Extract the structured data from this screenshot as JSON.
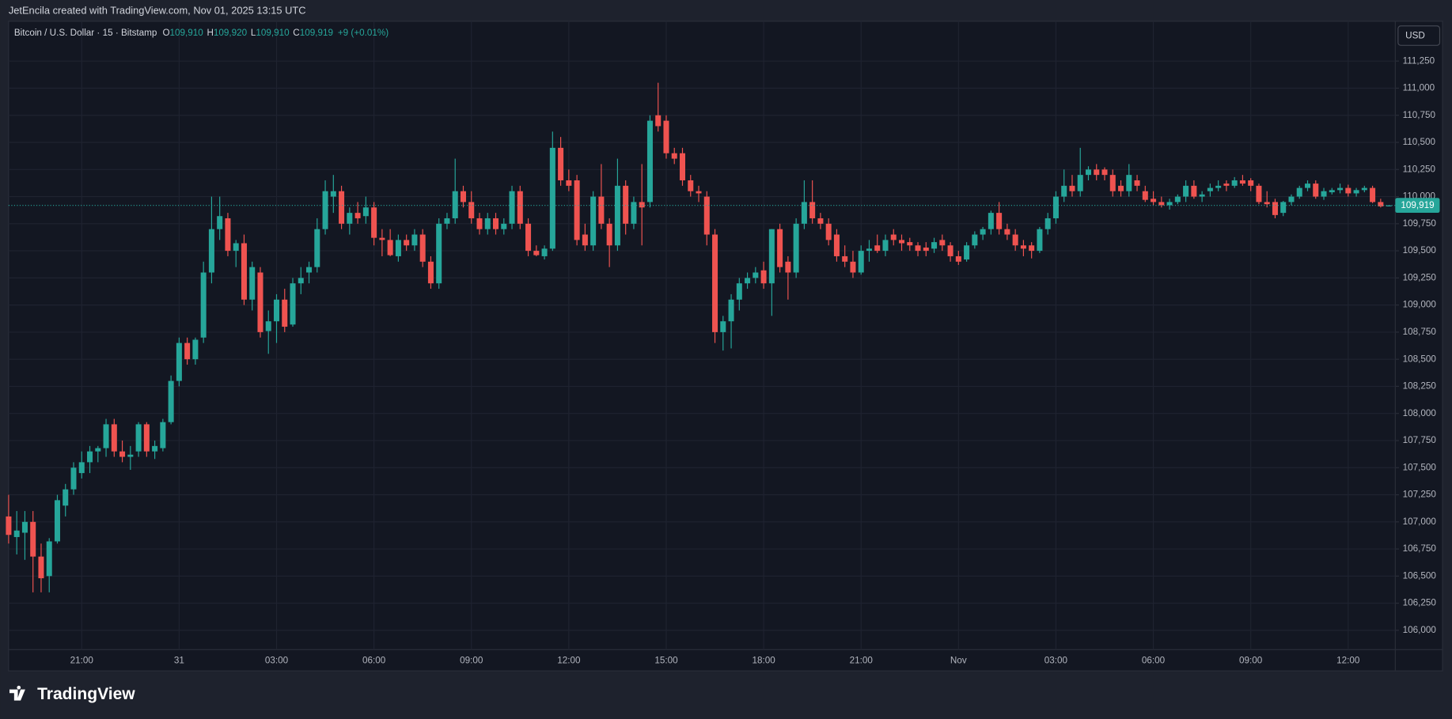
{
  "header": "JetEncila created with TradingView.com, Nov 01, 2025 13:15 UTC",
  "footer": {
    "brand": "TradingView"
  },
  "chart_data": {
    "type": "candlestick",
    "legend": {
      "symbol": "Bitcoin / U.S. Dollar · 15 · Bitstamp",
      "open_label": "O",
      "open": "109,910",
      "high_label": "H",
      "high": "109,920",
      "low_label": "L",
      "low": "109,910",
      "close_label": "C",
      "close": "109,919",
      "change": "+9 (+0.01%)"
    },
    "currency": "USD",
    "up_color": "#26a69a",
    "down_color": "#ef5350",
    "grid": true,
    "last_price": {
      "value": 109919,
      "label": "109,919"
    },
    "ylim": [
      105822,
      111617
    ],
    "yticks": [
      {
        "value": 106000,
        "label": "106,000"
      },
      {
        "value": 106250,
        "label": "106,250"
      },
      {
        "value": 106500,
        "label": "106,500"
      },
      {
        "value": 106750,
        "label": "106,750"
      },
      {
        "value": 107000,
        "label": "107,000"
      },
      {
        "value": 107250,
        "label": "107,250"
      },
      {
        "value": 107500,
        "label": "107,500"
      },
      {
        "value": 107750,
        "label": "107,750"
      },
      {
        "value": 108000,
        "label": "108,000"
      },
      {
        "value": 108250,
        "label": "108,250"
      },
      {
        "value": 108500,
        "label": "108,500"
      },
      {
        "value": 108750,
        "label": "108,750"
      },
      {
        "value": 109000,
        "label": "109,000"
      },
      {
        "value": 109250,
        "label": "109,250"
      },
      {
        "value": 109500,
        "label": "109,500"
      },
      {
        "value": 109750,
        "label": "109,750"
      },
      {
        "value": 110000,
        "label": "110,000"
      },
      {
        "value": 110250,
        "label": "110,250"
      },
      {
        "value": 110500,
        "label": "110,500"
      },
      {
        "value": 110750,
        "label": "110,750"
      },
      {
        "value": 111000,
        "label": "111,000"
      },
      {
        "value": 111250,
        "label": "111,250"
      }
    ],
    "categories": [
      null,
      null,
      null,
      null,
      null,
      null,
      null,
      null,
      null,
      "21:00",
      null,
      null,
      null,
      null,
      null,
      null,
      null,
      null,
      null,
      null,
      null,
      "31",
      null,
      null,
      null,
      null,
      null,
      null,
      null,
      null,
      null,
      null,
      null,
      "03:00",
      null,
      null,
      null,
      null,
      null,
      null,
      null,
      null,
      null,
      null,
      null,
      "06:00",
      null,
      null,
      null,
      null,
      null,
      null,
      null,
      null,
      null,
      null,
      null,
      "09:00",
      null,
      null,
      null,
      null,
      null,
      null,
      null,
      null,
      null,
      null,
      null,
      "12:00",
      null,
      null,
      null,
      null,
      null,
      null,
      null,
      null,
      null,
      null,
      null,
      "15:00",
      null,
      null,
      null,
      null,
      null,
      null,
      null,
      null,
      null,
      null,
      null,
      "18:00",
      null,
      null,
      null,
      null,
      null,
      null,
      null,
      null,
      null,
      null,
      null,
      "21:00",
      null,
      null,
      null,
      null,
      null,
      null,
      null,
      null,
      null,
      null,
      null,
      "Nov",
      null,
      null,
      null,
      null,
      null,
      null,
      null,
      null,
      null,
      null,
      null,
      "03:00",
      null,
      null,
      null,
      null,
      null,
      null,
      null,
      null,
      null,
      null,
      null,
      "06:00",
      null,
      null,
      null,
      null,
      null,
      null,
      null,
      null,
      null,
      null,
      null,
      "09:00",
      null,
      null,
      null,
      null,
      null,
      null,
      null,
      null,
      null,
      null,
      null,
      "12:00",
      null,
      null,
      null,
      null,
      null
    ],
    "ohlc": [
      [
        107050,
        107250,
        106800,
        106880
      ],
      [
        106860,
        107100,
        106700,
        106920
      ],
      [
        106900,
        107100,
        106650,
        107000
      ],
      [
        107000,
        107100,
        106350,
        106680
      ],
      [
        106680,
        106800,
        106350,
        106480
      ],
      [
        106500,
        106850,
        106350,
        106820
      ],
      [
        106820,
        107250,
        106800,
        107200
      ],
      [
        107150,
        107350,
        107050,
        107300
      ],
      [
        107300,
        107550,
        107250,
        107500
      ],
      [
        107450,
        107650,
        107400,
        107550
      ],
      [
        107550,
        107700,
        107450,
        107650
      ],
      [
        107650,
        107700,
        107550,
        107680
      ],
      [
        107680,
        107950,
        107600,
        107900
      ],
      [
        107900,
        107950,
        107600,
        107650
      ],
      [
        107650,
        107750,
        107550,
        107600
      ],
      [
        107600,
        107700,
        107480,
        107620
      ],
      [
        107650,
        107920,
        107600,
        107900
      ],
      [
        107900,
        107920,
        107600,
        107650
      ],
      [
        107650,
        107750,
        107580,
        107700
      ],
      [
        107680,
        107950,
        107650,
        107920
      ],
      [
        107920,
        108350,
        107900,
        108300
      ],
      [
        108300,
        108700,
        108250,
        108650
      ],
      [
        108650,
        108700,
        108450,
        108500
      ],
      [
        108500,
        108700,
        108450,
        108680
      ],
      [
        108700,
        109400,
        108650,
        109300
      ],
      [
        109300,
        110000,
        109200,
        109700
      ],
      [
        109700,
        110000,
        109600,
        109820
      ],
      [
        109800,
        109850,
        109450,
        109500
      ],
      [
        109500,
        109600,
        109350,
        109570
      ],
      [
        109570,
        109650,
        109000,
        109050
      ],
      [
        109050,
        109400,
        108950,
        109350
      ],
      [
        109300,
        109350,
        108700,
        108750
      ],
      [
        108760,
        108950,
        108550,
        108850
      ],
      [
        108850,
        109100,
        108650,
        109050
      ],
      [
        109050,
        109150,
        108750,
        108800
      ],
      [
        108820,
        109250,
        108800,
        109200
      ],
      [
        109200,
        109350,
        109100,
        109250
      ],
      [
        109300,
        109400,
        109200,
        109350
      ],
      [
        109350,
        109800,
        109300,
        109700
      ],
      [
        109700,
        110150,
        109650,
        110050
      ],
      [
        110000,
        110200,
        109850,
        110050
      ],
      [
        110050,
        110100,
        109700,
        109750
      ],
      [
        109750,
        109900,
        109650,
        109850
      ],
      [
        109850,
        109950,
        109750,
        109800
      ],
      [
        109820,
        110000,
        109750,
        109900
      ],
      [
        109900,
        109950,
        109550,
        109620
      ],
      [
        109620,
        109700,
        109450,
        109600
      ],
      [
        109600,
        109700,
        109450,
        109460
      ],
      [
        109450,
        109650,
        109400,
        109600
      ],
      [
        109600,
        109650,
        109500,
        109550
      ],
      [
        109550,
        109700,
        109500,
        109650
      ],
      [
        109650,
        109700,
        109350,
        109400
      ],
      [
        109400,
        109450,
        109150,
        109200
      ],
      [
        109200,
        109800,
        109150,
        109750
      ],
      [
        109750,
        109850,
        109700,
        109800
      ],
      [
        109800,
        110350,
        109750,
        110050
      ],
      [
        110050,
        110100,
        109900,
        109950
      ],
      [
        109950,
        110050,
        109750,
        109800
      ],
      [
        109800,
        109850,
        109650,
        109700
      ],
      [
        109700,
        109850,
        109650,
        109800
      ],
      [
        109800,
        109850,
        109650,
        109700
      ],
      [
        109700,
        109800,
        109650,
        109750
      ],
      [
        109750,
        110100,
        109700,
        110050
      ],
      [
        110050,
        110100,
        109700,
        109750
      ],
      [
        109750,
        109800,
        109450,
        109500
      ],
      [
        109500,
        109550,
        109450,
        109460
      ],
      [
        109450,
        109550,
        109420,
        109520
      ],
      [
        109520,
        110600,
        109500,
        110450
      ],
      [
        110450,
        110550,
        110100,
        110150
      ],
      [
        110150,
        110250,
        110050,
        110100
      ],
      [
        110150,
        110200,
        109550,
        109600
      ],
      [
        109650,
        109750,
        109500,
        109550
      ],
      [
        109550,
        110050,
        109500,
        110000
      ],
      [
        110000,
        110300,
        109700,
        109750
      ],
      [
        109750,
        109800,
        109350,
        109550
      ],
      [
        109550,
        110350,
        109500,
        110100
      ],
      [
        110100,
        110150,
        109650,
        109750
      ],
      [
        109750,
        110000,
        109700,
        109950
      ],
      [
        109950,
        110300,
        109550,
        109900
      ],
      [
        109950,
        110750,
        109900,
        110700
      ],
      [
        110750,
        111050,
        110600,
        110650
      ],
      [
        110700,
        110750,
        110350,
        110400
      ],
      [
        110400,
        110450,
        110300,
        110350
      ],
      [
        110400,
        110450,
        110100,
        110150
      ],
      [
        110150,
        110200,
        110000,
        110050
      ],
      [
        110050,
        110100,
        109950,
        110030
      ],
      [
        110000,
        110050,
        109550,
        109650
      ],
      [
        109650,
        109700,
        108650,
        108750
      ],
      [
        108750,
        108900,
        108580,
        108850
      ],
      [
        108850,
        109100,
        108600,
        109050
      ],
      [
        109050,
        109250,
        108950,
        109200
      ],
      [
        109200,
        109300,
        109150,
        109250
      ],
      [
        109250,
        109350,
        109200,
        109300
      ],
      [
        109320,
        109400,
        109150,
        109200
      ],
      [
        109200,
        109700,
        108900,
        109700
      ],
      [
        109700,
        109750,
        109300,
        109350
      ],
      [
        109400,
        109450,
        109050,
        109300
      ],
      [
        109300,
        109800,
        109250,
        109750
      ],
      [
        109750,
        110150,
        109700,
        109950
      ],
      [
        109950,
        110150,
        109750,
        109800
      ],
      [
        109800,
        109850,
        109700,
        109750
      ],
      [
        109750,
        109800,
        109550,
        109600
      ],
      [
        109650,
        109700,
        109400,
        109450
      ],
      [
        109450,
        109550,
        109350,
        109400
      ],
      [
        109400,
        109500,
        109250,
        109300
      ],
      [
        109300,
        109550,
        109280,
        109500
      ],
      [
        109500,
        109600,
        109400,
        109520
      ],
      [
        109550,
        109650,
        109480,
        109500
      ],
      [
        109500,
        109650,
        109450,
        109600
      ],
      [
        109650,
        109700,
        109550,
        109600
      ],
      [
        109600,
        109650,
        109500,
        109570
      ],
      [
        109580,
        109620,
        109500,
        109550
      ],
      [
        109550,
        109580,
        109450,
        109500
      ],
      [
        109530,
        109580,
        109450,
        109500
      ],
      [
        109520,
        109620,
        109480,
        109580
      ],
      [
        109600,
        109650,
        109500,
        109550
      ],
      [
        109550,
        109580,
        109400,
        109450
      ],
      [
        109450,
        109500,
        109370,
        109400
      ],
      [
        109420,
        109580,
        109400,
        109550
      ],
      [
        109550,
        109680,
        109520,
        109650
      ],
      [
        109650,
        109720,
        109600,
        109700
      ],
      [
        109700,
        109870,
        109650,
        109850
      ],
      [
        109850,
        109950,
        109650,
        109700
      ],
      [
        109700,
        109750,
        109600,
        109650
      ],
      [
        109650,
        109700,
        109500,
        109550
      ],
      [
        109550,
        109600,
        109450,
        109520
      ],
      [
        109550,
        109580,
        109430,
        109500
      ],
      [
        109500,
        109720,
        109480,
        109700
      ],
      [
        109700,
        109850,
        109650,
        109800
      ],
      [
        109800,
        110050,
        109750,
        110000
      ],
      [
        110000,
        110250,
        109950,
        110100
      ],
      [
        110100,
        110200,
        110000,
        110050
      ],
      [
        110050,
        110450,
        110000,
        110200
      ],
      [
        110200,
        110280,
        110150,
        110250
      ],
      [
        110250,
        110300,
        110150,
        110200
      ],
      [
        110250,
        110270,
        110150,
        110200
      ],
      [
        110200,
        110250,
        110000,
        110050
      ],
      [
        110100,
        110150,
        110000,
        110050
      ],
      [
        110050,
        110300,
        110000,
        110200
      ],
      [
        110150,
        110200,
        110050,
        110100
      ],
      [
        110050,
        110100,
        109950,
        109970
      ],
      [
        109980,
        110050,
        109920,
        109950
      ],
      [
        109950,
        110000,
        109900,
        109920
      ],
      [
        109920,
        109980,
        109880,
        109950
      ],
      [
        109950,
        110020,
        109930,
        110000
      ],
      [
        110000,
        110150,
        109950,
        110100
      ],
      [
        110100,
        110150,
        109980,
        110000
      ],
      [
        110000,
        110050,
        109950,
        110020
      ],
      [
        110050,
        110120,
        110000,
        110080
      ],
      [
        110080,
        110150,
        110050,
        110100
      ],
      [
        110120,
        110150,
        110050,
        110100
      ],
      [
        110100,
        110180,
        110080,
        110150
      ],
      [
        110150,
        110200,
        110100,
        110120
      ],
      [
        110150,
        110170,
        110050,
        110100
      ],
      [
        110100,
        110120,
        109930,
        109950
      ],
      [
        109950,
        110050,
        109900,
        109930
      ],
      [
        109950,
        109980,
        109800,
        109830
      ],
      [
        109850,
        109960,
        109820,
        109950
      ],
      [
        109950,
        110020,
        109920,
        110000
      ],
      [
        110000,
        110100,
        109980,
        110080
      ],
      [
        110080,
        110150,
        110050,
        110120
      ],
      [
        110120,
        110150,
        109980,
        110000
      ],
      [
        110000,
        110080,
        109970,
        110050
      ],
      [
        110040,
        110080,
        110020,
        110060
      ],
      [
        110060,
        110120,
        110030,
        110080
      ],
      [
        110080,
        110110,
        110000,
        110030
      ],
      [
        110030,
        110080,
        110000,
        110060
      ],
      [
        110060,
        110100,
        110040,
        110080
      ],
      [
        110080,
        110100,
        109940,
        109950
      ],
      [
        109950,
        109980,
        109900,
        109910
      ],
      [
        109910,
        109920,
        109910,
        109919
      ]
    ]
  }
}
